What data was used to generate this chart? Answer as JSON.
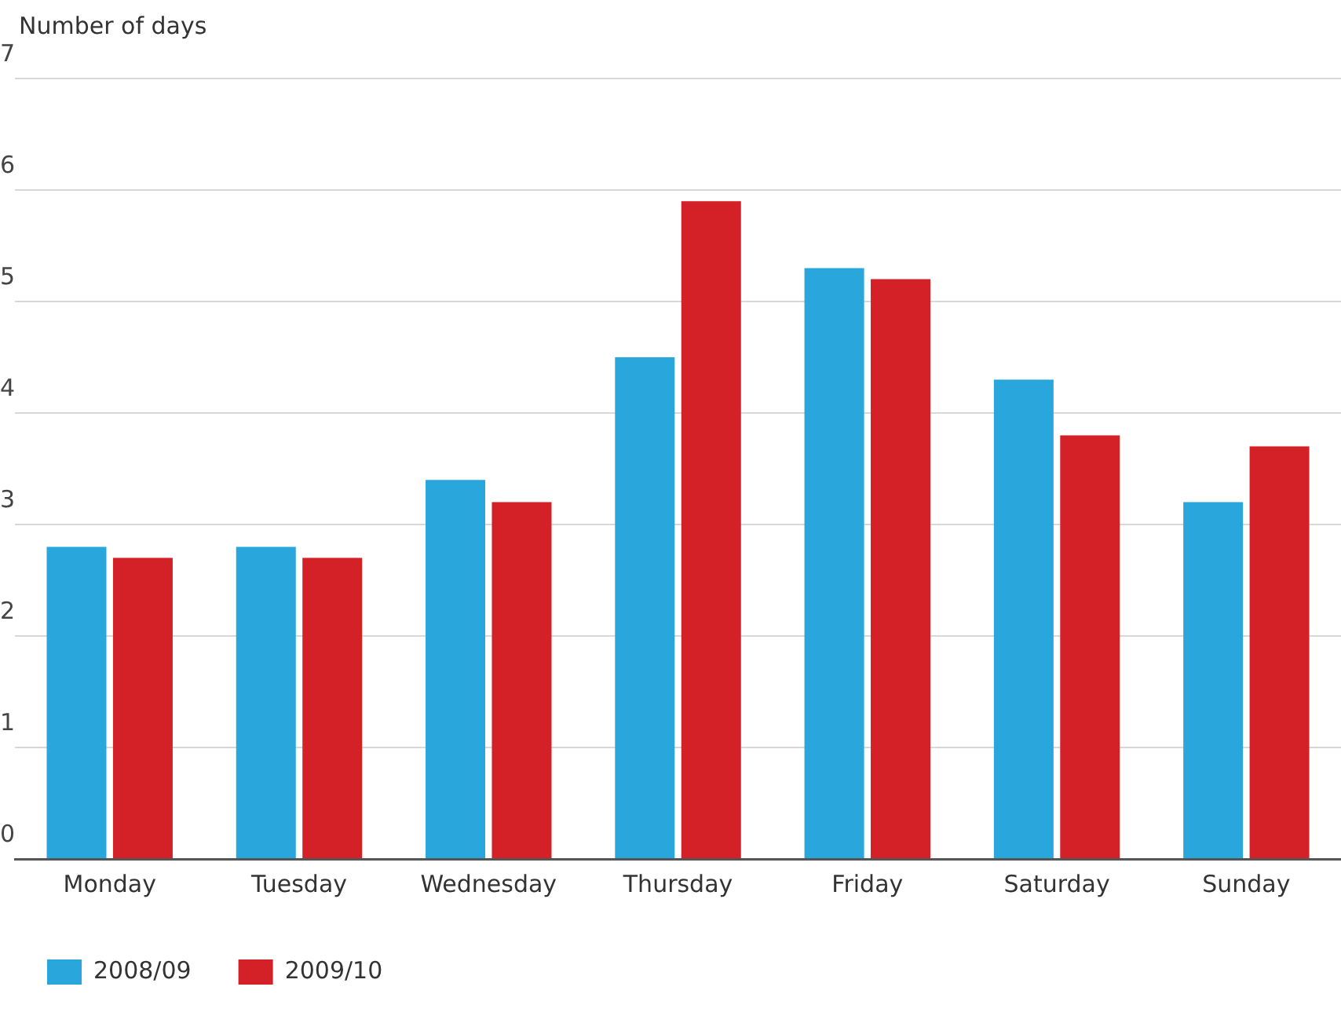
{
  "chart_data": {
    "type": "bar",
    "ylabel": "Number of days",
    "categories": [
      "Monday",
      "Tuesday",
      "Wednesday",
      "Thursday",
      "Friday",
      "Saturday",
      "Sunday"
    ],
    "series": [
      {
        "name": "2008/09",
        "color": "#29a7dc",
        "values": [
          2.8,
          2.8,
          3.4,
          4.5,
          5.3,
          4.3,
          3.2
        ]
      },
      {
        "name": "2009/10",
        "color": "#d42128",
        "values": [
          2.7,
          2.7,
          3.2,
          5.9,
          5.2,
          3.8,
          3.7
        ]
      }
    ],
    "ylim": [
      0,
      7
    ],
    "yticks": [
      0,
      1,
      2,
      3,
      4,
      5,
      6,
      7
    ],
    "grid": "y",
    "legend": "bottom left"
  }
}
